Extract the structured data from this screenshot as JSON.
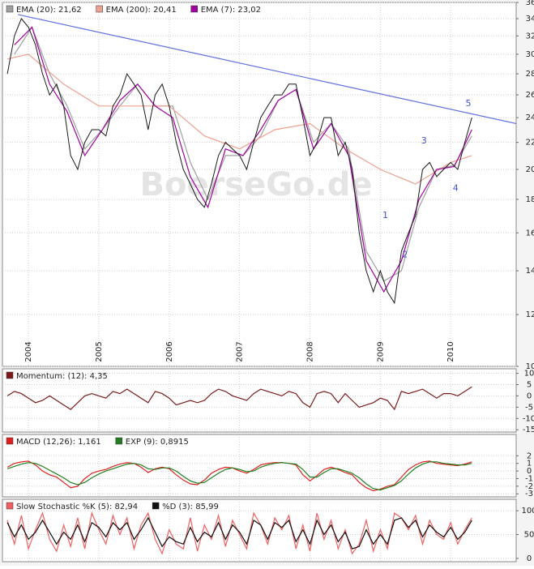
{
  "chart_data": [
    {
      "type": "line",
      "log_scale": true,
      "grid": true,
      "watermark": "BoerseGo.de",
      "xlim": [
        2003.63,
        2010.93
      ],
      "xticks": [
        2004,
        2005,
        2006,
        2007,
        2008,
        2009,
        2010
      ],
      "ylim": [
        10,
        36
      ],
      "yticks": [
        10,
        12,
        14,
        16,
        18,
        20,
        22,
        24,
        26,
        28,
        30,
        32,
        34,
        36
      ],
      "x": [
        2003.7,
        2003.8,
        2003.9,
        2004.0,
        2004.1,
        2004.2,
        2004.3,
        2004.4,
        2004.5,
        2004.6,
        2004.7,
        2004.8,
        2004.9,
        2005.0,
        2005.1,
        2005.2,
        2005.3,
        2005.4,
        2005.5,
        2005.6,
        2005.7,
        2005.8,
        2005.9,
        2006.0,
        2006.1,
        2006.2,
        2006.3,
        2006.4,
        2006.5,
        2006.6,
        2006.7,
        2006.8,
        2006.9,
        2007.0,
        2007.1,
        2007.2,
        2007.3,
        2007.4,
        2007.5,
        2007.6,
        2007.7,
        2007.8,
        2007.9,
        2008.0,
        2008.1,
        2008.2,
        2008.3,
        2008.4,
        2008.5,
        2008.6,
        2008.7,
        2008.8,
        2008.9,
        2009.0,
        2009.1,
        2009.2,
        2009.3,
        2009.4,
        2009.5,
        2009.6,
        2009.7,
        2009.8,
        2009.9,
        2010.0,
        2010.1,
        2010.2,
        2010.3
      ],
      "price": {
        "color": "#1a1a1a",
        "values": [
          28,
          32,
          34,
          33,
          31,
          28,
          26,
          27,
          25,
          21,
          20,
          22,
          23,
          23,
          22.5,
          25,
          26,
          28,
          27,
          26,
          23,
          26,
          27,
          25,
          22,
          20,
          19,
          18,
          17.5,
          19,
          21,
          22,
          21.5,
          21,
          20,
          22,
          24,
          25,
          26,
          26,
          27,
          27,
          24,
          21,
          22,
          24,
          24,
          21,
          22,
          20,
          16,
          14,
          13,
          14,
          13,
          12.5,
          15,
          16,
          17,
          20,
          20.5,
          19.5,
          20,
          20.5,
          20,
          22,
          24
        ]
      },
      "series": [
        {
          "name": "EMA (20): 21,62",
          "color": "#a0a0a0",
          "x": [
            2003.8,
            2004.05,
            2004.3,
            2004.55,
            2004.8,
            2005.05,
            2005.3,
            2005.55,
            2005.8,
            2006.05,
            2006.3,
            2006.55,
            2006.8,
            2007.05,
            2007.3,
            2007.55,
            2007.8,
            2008.05,
            2008.3,
            2008.55,
            2008.8,
            2009.05,
            2009.3,
            2009.55,
            2009.8,
            2010.05,
            2010.3
          ],
          "values": [
            30,
            33,
            28,
            25,
            21.5,
            23,
            25,
            27,
            25,
            25,
            20.5,
            18,
            21,
            21,
            22.5,
            25.5,
            26.5,
            22,
            23.5,
            21.5,
            15,
            13.5,
            14,
            17.5,
            20,
            20.3,
            22.5
          ]
        },
        {
          "name": "EMA (200): 20,41",
          "color": "#f0a090",
          "x": [
            2003.7,
            2004.0,
            2004.5,
            2005.0,
            2005.5,
            2006.0,
            2006.5,
            2007.0,
            2007.5,
            2008.0,
            2008.5,
            2009.0,
            2009.5,
            2010.0,
            2010.3
          ],
          "values": [
            29.5,
            30,
            27,
            25,
            25,
            25,
            22.5,
            21.5,
            23,
            23.5,
            21.5,
            20,
            19,
            20.5,
            21
          ]
        },
        {
          "name": "EMA (7): 23,02",
          "color": "#a000a0",
          "x": [
            2003.8,
            2004.05,
            2004.3,
            2004.55,
            2004.8,
            2005.05,
            2005.3,
            2005.55,
            2005.8,
            2006.05,
            2006.3,
            2006.55,
            2006.8,
            2007.05,
            2007.3,
            2007.55,
            2007.8,
            2008.05,
            2008.3,
            2008.55,
            2008.8,
            2009.05,
            2009.3,
            2009.55,
            2009.8,
            2010.05,
            2010.3
          ],
          "values": [
            31,
            33,
            27,
            24.5,
            21,
            23,
            25.5,
            27,
            25,
            24,
            19.5,
            17.5,
            21.5,
            21,
            23,
            25.5,
            26.5,
            21.5,
            23.5,
            21,
            14.5,
            13,
            14.5,
            18,
            20,
            20.2,
            23
          ]
        }
      ],
      "trendline": {
        "color": "#6070e0",
        "x": [
          2003.85,
          2010.93
        ],
        "values": [
          34.5,
          23.5
        ]
      },
      "annotations": [
        {
          "text": "1",
          "x": 2009.07,
          "y": 17
        },
        {
          "text": "2",
          "x": 2009.35,
          "y": 14.8
        },
        {
          "text": "3",
          "x": 2009.62,
          "y": 22.1
        },
        {
          "text": "4",
          "x": 2010.07,
          "y": 18.7
        },
        {
          "text": "5",
          "x": 2010.25,
          "y": 25.2
        }
      ]
    },
    {
      "type": "line",
      "grid": true,
      "xlim": [
        2003.63,
        2010.93
      ],
      "xticks": [
        2004,
        2005,
        2006,
        2007,
        2008,
        2009,
        2010
      ],
      "ylim": [
        -16,
        12
      ],
      "yticks": [
        10,
        5,
        0,
        -5,
        -10,
        -15
      ],
      "x": [
        2003.7,
        2003.8,
        2003.9,
        2004.0,
        2004.1,
        2004.2,
        2004.3,
        2004.4,
        2004.5,
        2004.6,
        2004.7,
        2004.8,
        2004.9,
        2005.0,
        2005.1,
        2005.2,
        2005.3,
        2005.4,
        2005.5,
        2005.6,
        2005.7,
        2005.8,
        2005.9,
        2006.0,
        2006.1,
        2006.2,
        2006.3,
        2006.4,
        2006.5,
        2006.6,
        2006.7,
        2006.8,
        2006.9,
        2007.0,
        2007.1,
        2007.2,
        2007.3,
        2007.4,
        2007.5,
        2007.6,
        2007.7,
        2007.8,
        2007.9,
        2008.0,
        2008.1,
        2008.2,
        2008.3,
        2008.4,
        2008.5,
        2008.6,
        2008.7,
        2008.8,
        2008.9,
        2009.0,
        2009.1,
        2009.2,
        2009.3,
        2009.4,
        2009.5,
        2009.6,
        2009.7,
        2009.8,
        2009.9,
        2010.0,
        2010.1,
        2010.2,
        2010.3
      ],
      "series": [
        {
          "name": "Momentum: (12): 4,35",
          "color": "#7a1a1a",
          "values": [
            0,
            2,
            1,
            -1,
            -3,
            -2,
            0,
            -2,
            -4,
            -6,
            -3,
            0,
            1,
            0,
            -1,
            2,
            1,
            3,
            1,
            -1,
            -3,
            2,
            1,
            -1,
            -4,
            -3,
            -2,
            -3,
            -2,
            1,
            3,
            2,
            0,
            -1,
            -2,
            1,
            3,
            2,
            1,
            0,
            2,
            1,
            -3,
            -5,
            1,
            2,
            1,
            -3,
            1,
            -2,
            -5,
            -4,
            -3,
            -1,
            -2,
            -6,
            2,
            1,
            2,
            3,
            1,
            -1,
            1,
            1,
            0,
            2,
            4
          ]
        }
      ]
    },
    {
      "type": "line",
      "grid": true,
      "xlim": [
        2003.63,
        2010.93
      ],
      "xticks": [
        2004,
        2005,
        2006,
        2007,
        2008,
        2009,
        2010
      ],
      "ylim": [
        -3.4,
        4.8
      ],
      "yticks": [
        2,
        1,
        0,
        -1,
        -2,
        -3
      ],
      "x": [
        2003.7,
        2003.8,
        2003.9,
        2004.0,
        2004.1,
        2004.2,
        2004.3,
        2004.4,
        2004.5,
        2004.6,
        2004.7,
        2004.8,
        2004.9,
        2005.0,
        2005.1,
        2005.2,
        2005.3,
        2005.4,
        2005.5,
        2005.6,
        2005.7,
        2005.8,
        2005.9,
        2006.0,
        2006.1,
        2006.2,
        2006.3,
        2006.4,
        2006.5,
        2006.6,
        2006.7,
        2006.8,
        2006.9,
        2007.0,
        2007.1,
        2007.2,
        2007.3,
        2007.4,
        2007.5,
        2007.6,
        2007.7,
        2007.8,
        2007.9,
        2008.0,
        2008.1,
        2008.2,
        2008.3,
        2008.4,
        2008.5,
        2008.6,
        2008.7,
        2008.8,
        2008.9,
        2009.0,
        2009.1,
        2009.2,
        2009.3,
        2009.4,
        2009.5,
        2009.6,
        2009.7,
        2009.8,
        2009.9,
        2010.0,
        2010.1,
        2010.2,
        2010.3
      ],
      "series": [
        {
          "name": "MACD (12,26): 1,161",
          "color": "#e02020",
          "values": [
            0.5,
            1,
            1.2,
            1.3,
            0.8,
            0,
            -0.5,
            -0.8,
            -1.5,
            -2.2,
            -2,
            -1,
            -0.3,
            0,
            0.2,
            0.6,
            0.9,
            1.1,
            1,
            0.5,
            -0.2,
            0.3,
            0.5,
            0.3,
            -0.5,
            -1.2,
            -1.7,
            -1.8,
            -1.2,
            -0.3,
            0.2,
            0.5,
            0.4,
            0,
            -0.3,
            0.2,
            0.8,
            1,
            1.1,
            1.1,
            1,
            0.8,
            -0.5,
            -1.3,
            -0.6,
            0.2,
            0.5,
            0.2,
            -0.2,
            -0.5,
            -1.5,
            -2.2,
            -2.6,
            -2.4,
            -2,
            -1.8,
            -0.8,
            0.2,
            0.8,
            1.2,
            1.3,
            1,
            0.9,
            0.8,
            0.7,
            0.9,
            1.2
          ]
        },
        {
          "name": "EXP (9): 0,8915",
          "color": "#208020",
          "values": [
            0.3,
            0.6,
            0.9,
            1.1,
            1,
            0.6,
            0.1,
            -0.4,
            -0.9,
            -1.5,
            -1.8,
            -1.5,
            -0.9,
            -0.4,
            0,
            0.3,
            0.6,
            0.9,
            1,
            0.8,
            0.3,
            0.2,
            0.4,
            0.4,
            0,
            -0.7,
            -1.3,
            -1.6,
            -1.5,
            -0.9,
            -0.3,
            0.2,
            0.4,
            0.2,
            -0.1,
            0,
            0.5,
            0.8,
            1,
            1.1,
            1,
            0.9,
            0.2,
            -0.8,
            -0.8,
            -0.2,
            0.3,
            0.3,
            0,
            -0.3,
            -0.9,
            -1.7,
            -2.3,
            -2.5,
            -2.2,
            -1.9,
            -1.3,
            -0.4,
            0.4,
            0.9,
            1.2,
            1.2,
            1,
            0.9,
            0.8,
            0.8,
            1
          ]
        }
      ]
    },
    {
      "type": "line",
      "grid": true,
      "xlim": [
        2003.63,
        2010.93
      ],
      "xticks": [
        2004,
        2005,
        2006,
        2007,
        2008,
        2009,
        2010
      ],
      "ylim": [
        -7,
        124
      ],
      "yticks": [
        100,
        50,
        0
      ],
      "x": [
        2003.7,
        2003.8,
        2003.9,
        2004.0,
        2004.1,
        2004.2,
        2004.3,
        2004.4,
        2004.5,
        2004.6,
        2004.7,
        2004.8,
        2004.9,
        2005.0,
        2005.1,
        2005.2,
        2005.3,
        2005.4,
        2005.5,
        2005.6,
        2005.7,
        2005.8,
        2005.9,
        2006.0,
        2006.1,
        2006.2,
        2006.3,
        2006.4,
        2006.5,
        2006.6,
        2006.7,
        2006.8,
        2006.9,
        2007.0,
        2007.1,
        2007.2,
        2007.3,
        2007.4,
        2007.5,
        2007.6,
        2007.7,
        2007.8,
        2007.9,
        2008.0,
        2008.1,
        2008.2,
        2008.3,
        2008.4,
        2008.5,
        2008.6,
        2008.7,
        2008.8,
        2008.9,
        2009.0,
        2009.1,
        2009.2,
        2009.3,
        2009.4,
        2009.5,
        2009.6,
        2009.7,
        2009.8,
        2009.9,
        2010.0,
        2010.1,
        2010.2,
        2010.3
      ],
      "series": [
        {
          "name": "Slow Stochastic %K (5): 82,94",
          "color": "#f06060",
          "values": [
            80,
            30,
            90,
            20,
            60,
            95,
            40,
            15,
            70,
            25,
            85,
            20,
            95,
            60,
            30,
            90,
            50,
            85,
            20,
            70,
            95,
            40,
            10,
            60,
            30,
            20,
            85,
            15,
            70,
            40,
            90,
            25,
            80,
            50,
            20,
            95,
            70,
            30,
            85,
            60,
            90,
            20,
            70,
            15,
            95,
            40,
            80,
            20,
            60,
            10,
            30,
            80,
            15,
            60,
            20,
            95,
            85,
            60,
            90,
            30,
            80,
            50,
            40,
            75,
            30,
            60,
            85
          ]
        },
        {
          "name": "%D (3): 85,99",
          "color": "#101010",
          "values": [
            75,
            45,
            70,
            40,
            55,
            80,
            55,
            30,
            55,
            40,
            70,
            35,
            75,
            65,
            45,
            75,
            60,
            75,
            40,
            60,
            85,
            55,
            25,
            45,
            35,
            30,
            65,
            35,
            55,
            45,
            75,
            40,
            70,
            55,
            30,
            80,
            70,
            40,
            75,
            65,
            80,
            35,
            60,
            30,
            80,
            50,
            70,
            35,
            55,
            20,
            25,
            60,
            30,
            50,
            30,
            80,
            85,
            65,
            80,
            45,
            70,
            55,
            45,
            65,
            40,
            55,
            80
          ]
        }
      ]
    }
  ]
}
